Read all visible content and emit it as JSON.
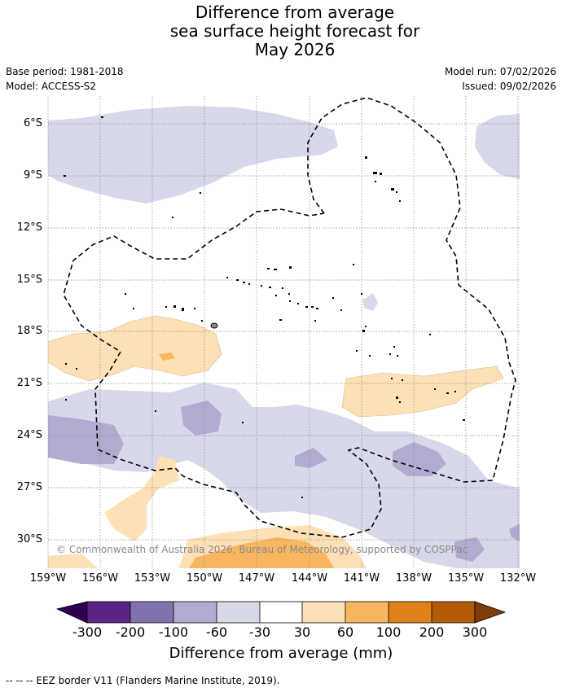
{
  "title_lines": [
    "Difference from average",
    "sea surface height forecast for",
    "May 2026"
  ],
  "base_period": "Base period: 1981-2018",
  "model": "Model: ACCESS-S2",
  "model_run": "Model run: 07/02/2026",
  "issued": "Issued: 09/02/2026",
  "lat_labels": [
    "6°S",
    "9°S",
    "12°S",
    "15°S",
    "18°S",
    "21°S",
    "24°S",
    "27°S",
    "30°S"
  ],
  "lon_labels": [
    "159°W",
    "156°W",
    "153°W",
    "150°W",
    "147°W",
    "144°W",
    "141°W",
    "138°W",
    "135°W",
    "132°W"
  ],
  "colorbar": {
    "labels": [
      "-300",
      "-200",
      "-100",
      "-60",
      "-30",
      "30",
      "60",
      "100",
      "200",
      "300"
    ],
    "colors": [
      "#5c2286",
      "#8072ad",
      "#b2aad1",
      "#d8d8eb",
      "#ffffff",
      "#fde0b6",
      "#f9b661",
      "#e08218",
      "#b35a06"
    ],
    "low_extend": "#2d0050",
    "high_extend": "#7f3b08",
    "title": "Difference from average (mm)"
  },
  "copyright": "© Commonwealth of Australia 2026, Bureau of Meteorology, supported by COSPPac",
  "footnote": "-- -- -- EEZ border V11 (Flanders Marine Institute, 2019).",
  "colors": {
    "grid": "#888888",
    "eez": "#000000"
  }
}
